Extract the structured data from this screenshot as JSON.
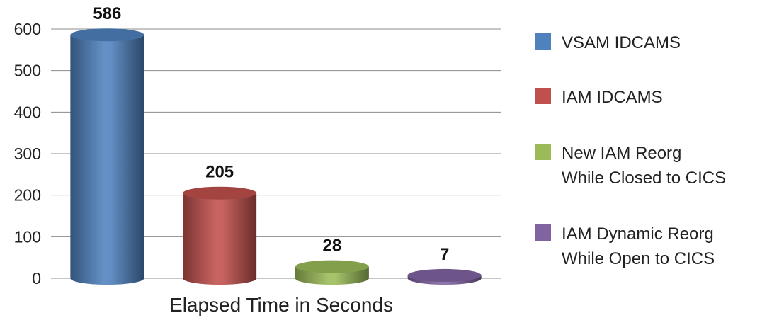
{
  "chart_data": {
    "type": "bar",
    "style": "3d-cylinder",
    "xlabel": "Elapsed Time in Seconds",
    "ylabel": "",
    "ylim": [
      0,
      600
    ],
    "yticks": [
      0,
      100,
      200,
      300,
      400,
      500,
      600
    ],
    "grid": true,
    "legend_position": "right",
    "series": [
      {
        "name": "VSAM IDCAMS",
        "value": 586,
        "color": "#4f81bd"
      },
      {
        "name": "IAM IDCAMS",
        "value": 205,
        "color": "#c0504d"
      },
      {
        "name": "New IAM Reorg While Closed to CICS",
        "name_lines": [
          "New IAM Reorg",
          "While Closed to CICS"
        ],
        "value": 28,
        "color": "#9bbb59"
      },
      {
        "name": "IAM Dynamic Reorg While Open to CICS",
        "name_lines": [
          "IAM Dynamic Reorg",
          "While Open to CICS"
        ],
        "value": 7,
        "color": "#8064a2"
      }
    ]
  }
}
